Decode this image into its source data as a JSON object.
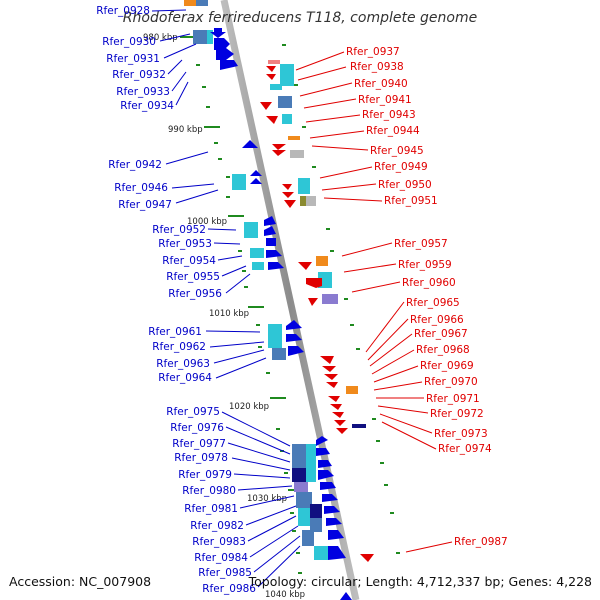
{
  "title": "Rhodoferax ferrireducens T118, complete genome",
  "footer": {
    "accession": "Accession: NC_007908",
    "summary": "Topology: circular; Length: 4,712,337 bp; Genes: 4,228"
  },
  "colors": {
    "reverse_strand_labels": "#0000c8",
    "forward_strand_labels": "#e00000",
    "backbone": "#8c8c8c",
    "tick": "#1f8a1f",
    "gene_cyan": "#2ec6d6",
    "gene_steel": "#4a7bb7",
    "gene_navy": "#101080",
    "gene_orange": "#f08a1c",
    "gene_pink": "#f08080",
    "gene_olive": "#8a8a30",
    "gene_grey": "#b8b8b8"
  },
  "kbp_ticks": [
    "980 kbp",
    "990 kbp",
    "1000 kbp",
    "1010 kbp",
    "1020 kbp",
    "1030 kbp",
    "1040 kbp"
  ],
  "reverse_genes": [
    "Rfer_0928",
    "Rfer_0930",
    "Rfer_0931",
    "Rfer_0932",
    "Rfer_0933",
    "Rfer_0934",
    "Rfer_0942",
    "Rfer_0946",
    "Rfer_0947",
    "Rfer_0952",
    "Rfer_0953",
    "Rfer_0954",
    "Rfer_0955",
    "Rfer_0956",
    "Rfer_0961",
    "Rfer_0962",
    "Rfer_0963",
    "Rfer_0964",
    "Rfer_0975",
    "Rfer_0976",
    "Rfer_0977",
    "Rfer_0978",
    "Rfer_0979",
    "Rfer_0980",
    "Rfer_0981",
    "Rfer_0982",
    "Rfer_0983",
    "Rfer_0984",
    "Rfer_0985",
    "Rfer_0986"
  ],
  "forward_genes": [
    "Rfer_0937",
    "Rfer_0938",
    "Rfer_0940",
    "Rfer_0941",
    "Rfer_0943",
    "Rfer_0944",
    "Rfer_0945",
    "Rfer_0949",
    "Rfer_0950",
    "Rfer_0951",
    "Rfer_0957",
    "Rfer_0959",
    "Rfer_0960",
    "Rfer_0965",
    "Rfer_0966",
    "Rfer_0967",
    "Rfer_0968",
    "Rfer_0969",
    "Rfer_0970",
    "Rfer_0971",
    "Rfer_0972",
    "Rfer_0973",
    "Rfer_0974",
    "Rfer_0987"
  ]
}
